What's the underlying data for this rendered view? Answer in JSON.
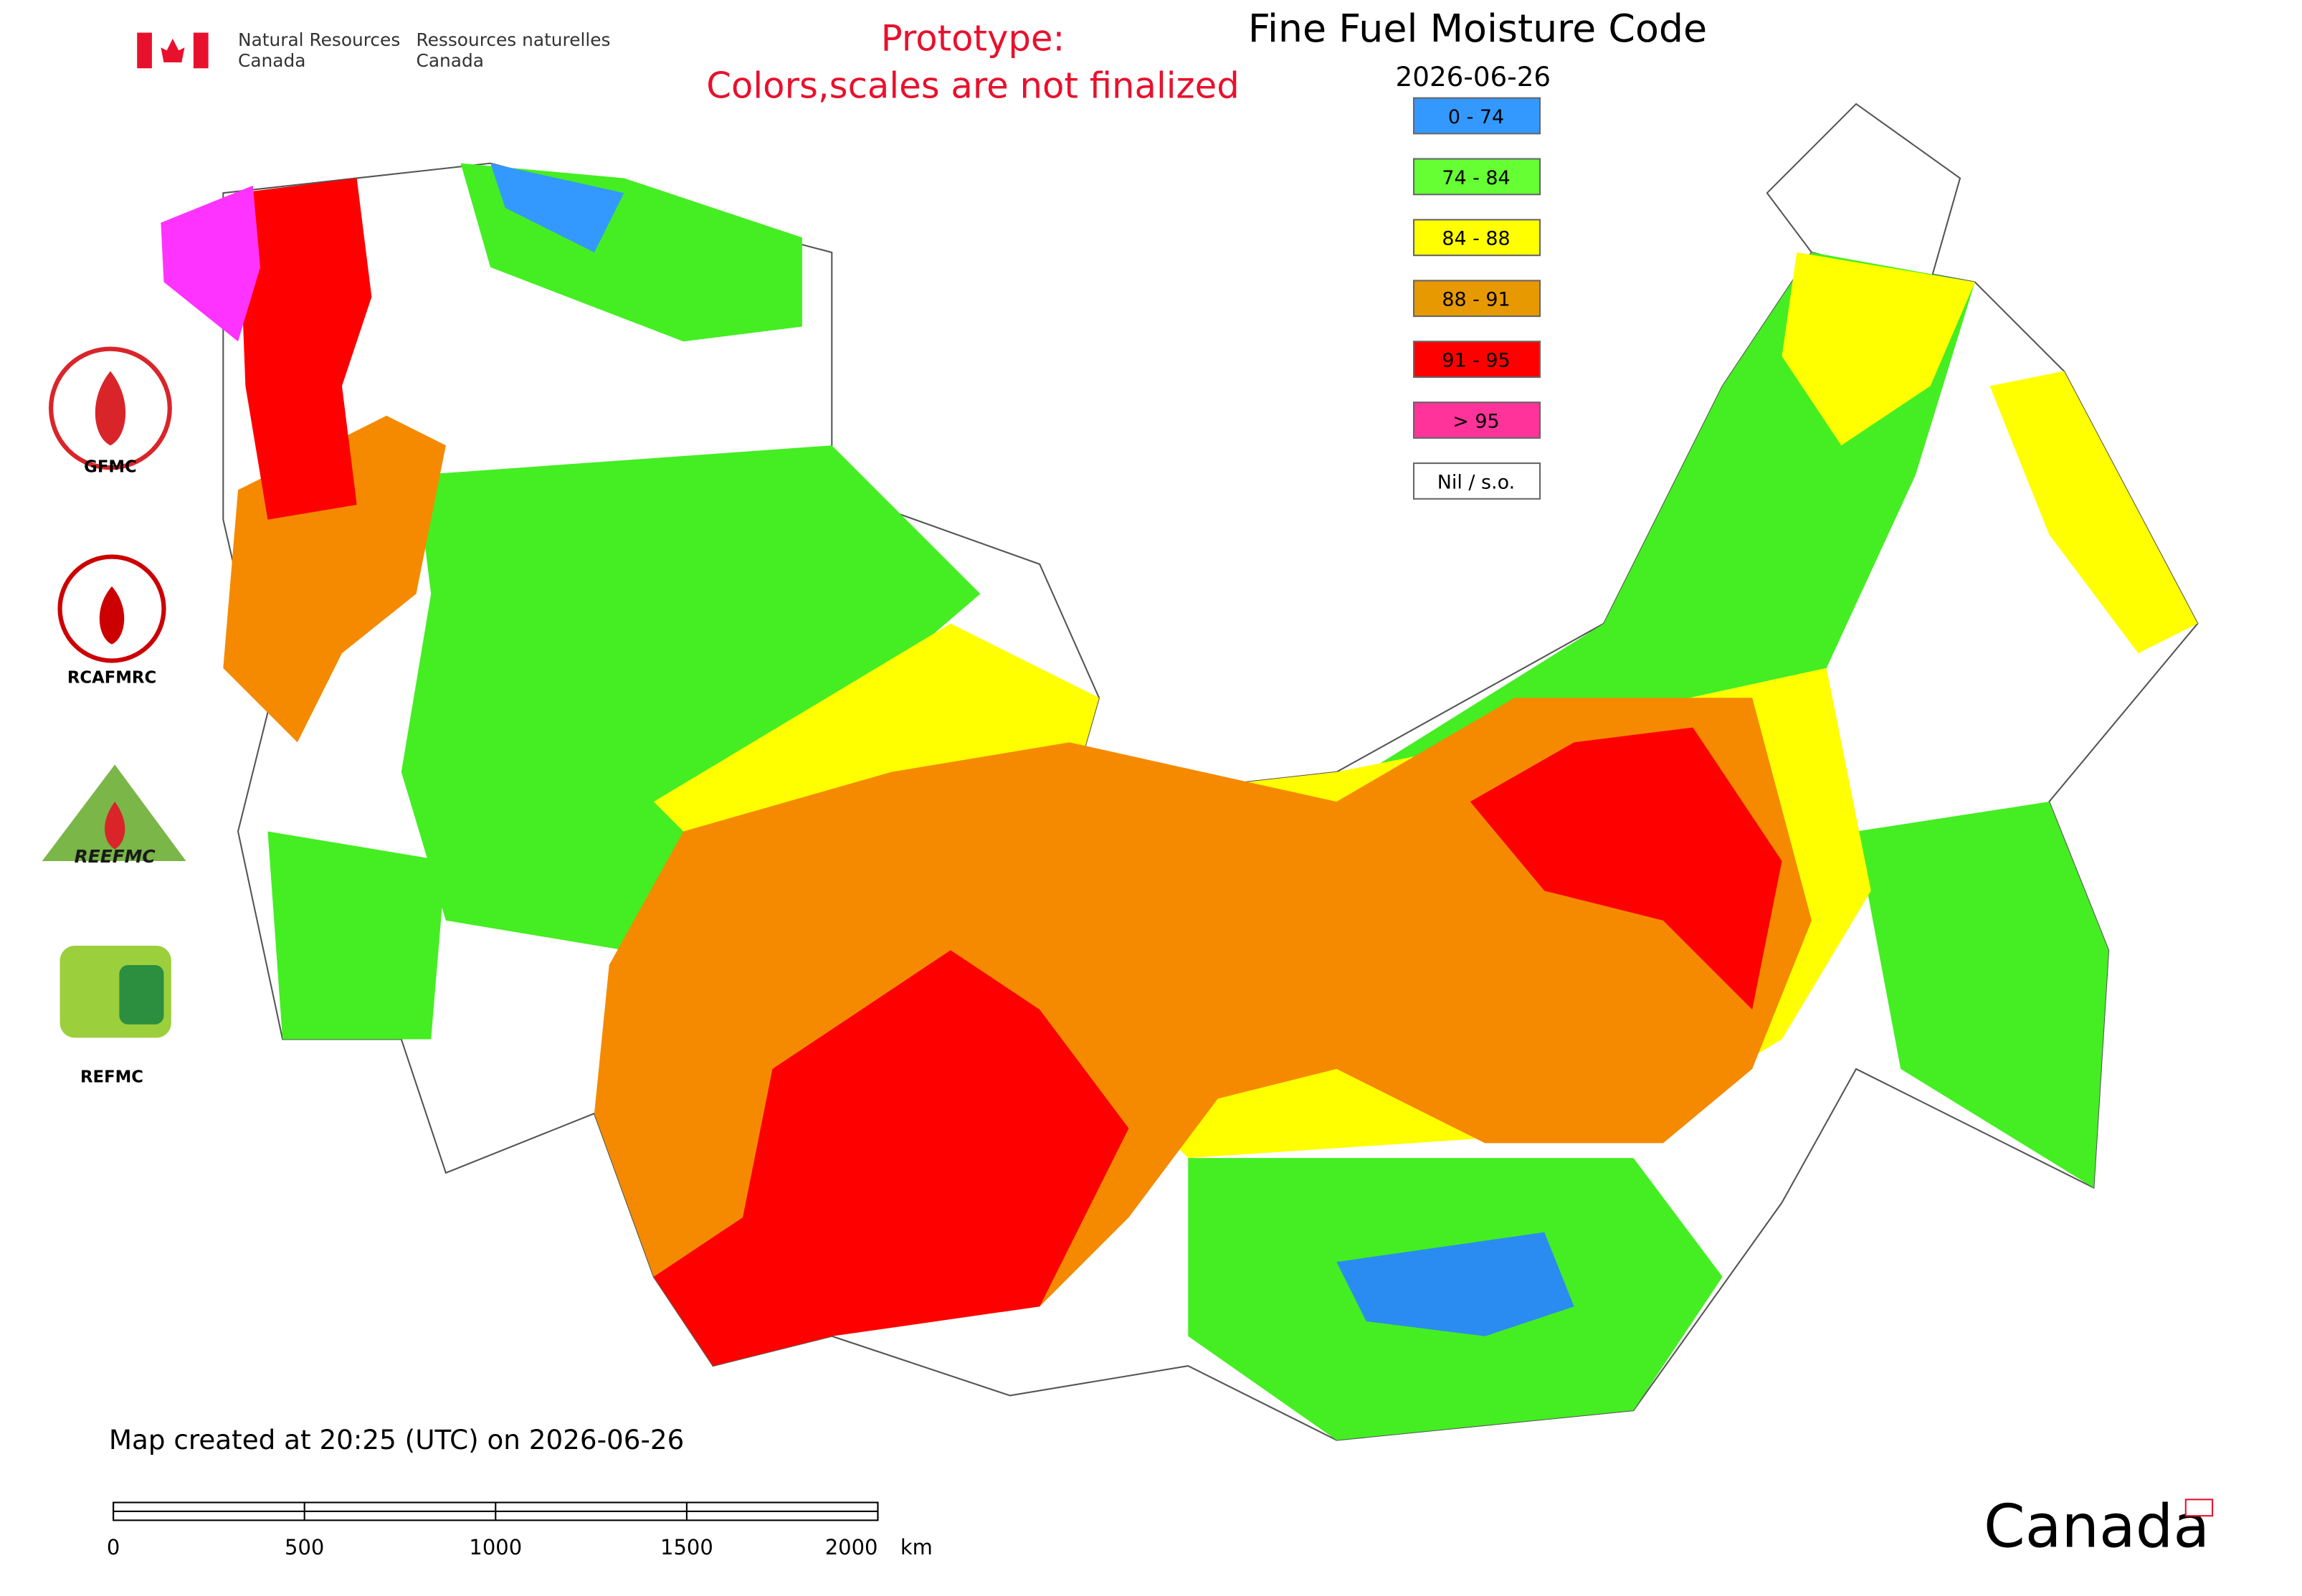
{
  "header": {
    "department_en": "Natural Resources",
    "country_en": "Canada",
    "department_fr": "Ressources naturelles",
    "country_fr": "Canada"
  },
  "notice": {
    "line1": "Prototype:",
    "line2": "Colors,scales are not finalized"
  },
  "map": {
    "title": "Fine Fuel Moisture Code",
    "date": "2026-06-26",
    "legend": [
      {
        "label": "0 - 74",
        "color": "#3399ff"
      },
      {
        "label": "74 - 84",
        "color": "#66ff33"
      },
      {
        "label": "84 - 88",
        "color": "#ffff00"
      },
      {
        "label": "88 - 91",
        "color": "#e69900"
      },
      {
        "label": "91 - 95",
        "color": "#ff0000"
      },
      {
        "label": "> 95",
        "color": "#ff3399"
      },
      {
        "label": "Nil / s.o.",
        "color": "#ffffff"
      }
    ]
  },
  "logos": [
    "GFMC",
    "RCAFMRC",
    "REEFMC",
    "REFMC"
  ],
  "footer": {
    "created": "Map created at 20:25 (UTC) on 2026-06-26",
    "wordmark": "Canada"
  },
  "scale_bar": {
    "ticks": [
      0,
      500,
      1000,
      1500,
      2000
    ],
    "unit": "km"
  }
}
